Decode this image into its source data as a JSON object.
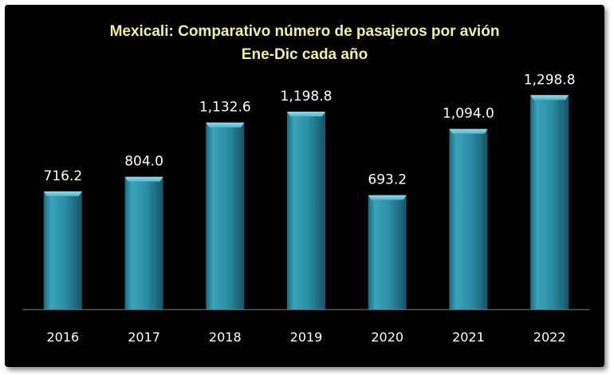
{
  "chart_data": {
    "type": "bar",
    "title": "Mexicali: Comparativo número de pasajeros por avión",
    "subtitle": "Ene-Dic cada año",
    "categories": [
      "2016",
      "2017",
      "2018",
      "2019",
      "2020",
      "2021",
      "2022"
    ],
    "values": [
      716.2,
      804.0,
      1132.6,
      1198.8,
      693.2,
      1094.0,
      1298.8
    ],
    "value_labels": [
      "716.2",
      "804.0",
      "1,132.6",
      "1,198.8",
      "693.2",
      "1,094.0",
      "1,298.8"
    ],
    "xlabel": "",
    "ylabel": "",
    "ylim": [
      0,
      1450
    ],
    "grid": false,
    "legend": "none",
    "colors": {
      "background": "#000000",
      "bar": "#2b8fa6",
      "bar_light": "#5fc3d6",
      "bar_dark": "#145566",
      "title": "#f1ee9c",
      "text": "#ffffff",
      "axis": "#808080"
    }
  }
}
